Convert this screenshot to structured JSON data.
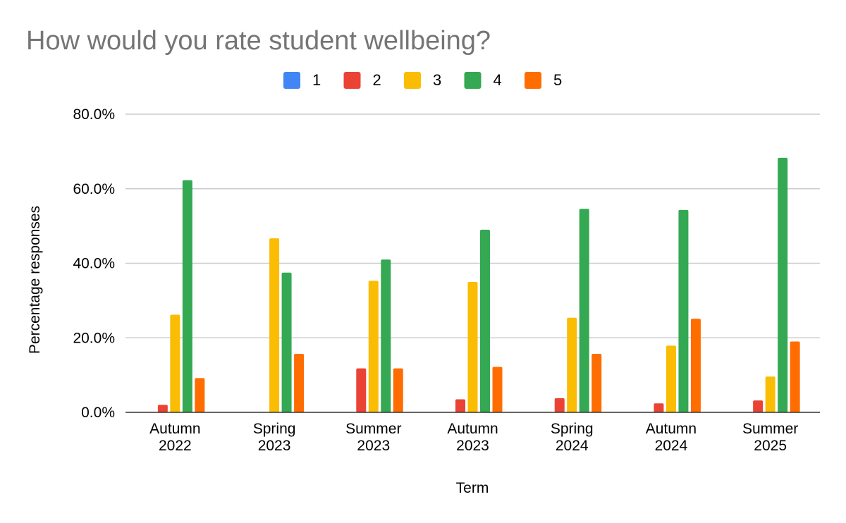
{
  "chart_data": {
    "type": "bar",
    "title": "How would you rate student wellbeing?",
    "xlabel": "Term",
    "ylabel": "Percentage responses",
    "categories": [
      [
        "Autumn",
        "2022"
      ],
      [
        "Spring",
        "2023"
      ],
      [
        "Summer",
        "2023"
      ],
      [
        "Autumn",
        "2023"
      ],
      [
        "Spring",
        "2024"
      ],
      [
        "Autumn",
        "2024"
      ],
      [
        "Summer",
        "2025"
      ]
    ],
    "ylim": [
      0,
      80
    ],
    "yticks": [
      0,
      20,
      40,
      60,
      80
    ],
    "ytick_labels": [
      "0.0%",
      "20.0%",
      "40.0%",
      "60.0%",
      "80.0%"
    ],
    "grid": true,
    "legend_position": "top",
    "series": [
      {
        "name": "1",
        "color": "#4285f4",
        "values": [
          0,
          0,
          0,
          0,
          0,
          0,
          0
        ]
      },
      {
        "name": "2",
        "color": "#ea4335",
        "values": [
          2.0,
          0,
          11.8,
          3.5,
          3.8,
          2.4,
          3.2
        ]
      },
      {
        "name": "3",
        "color": "#fbbc04",
        "values": [
          26.2,
          46.7,
          35.3,
          35.0,
          25.4,
          17.9,
          9.6
        ]
      },
      {
        "name": "4",
        "color": "#34a853",
        "values": [
          62.3,
          37.5,
          41.0,
          49.0,
          54.6,
          54.3,
          68.3
        ]
      },
      {
        "name": "5",
        "color": "#ff6d01",
        "values": [
          9.2,
          15.7,
          11.8,
          12.2,
          15.7,
          25.1,
          19.0
        ]
      }
    ]
  }
}
